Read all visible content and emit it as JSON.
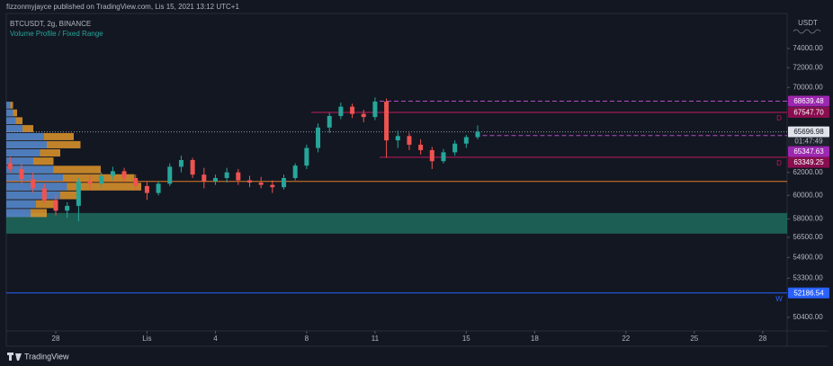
{
  "header": {
    "publisher": "fizzonmyjayce published on TradingView.com, Lis 15, 2021 13:12 UTC+1",
    "footer": "TradingView"
  },
  "chart_data": {
    "type": "candlestick",
    "title": "BTCUSDT, 2g, BINANCE",
    "indicator": "Volume Profile / Fixed Range",
    "currency": "USDT",
    "log_scale": true,
    "up_color": "#26a69a",
    "down_color": "#ef5350",
    "xlim": [
      -2.17,
      32.07
    ],
    "xticks": [
      {
        "value": 0,
        "label": "28"
      },
      {
        "value": 4,
        "label": "Lis"
      },
      {
        "value": 7,
        "label": "4"
      },
      {
        "value": 11,
        "label": "8"
      },
      {
        "value": 14,
        "label": "11"
      },
      {
        "value": 18,
        "label": "15"
      },
      {
        "value": 21,
        "label": "18"
      },
      {
        "value": 25,
        "label": "22"
      },
      {
        "value": 28,
        "label": "25"
      },
      {
        "value": 31,
        "label": "28"
      }
    ],
    "ylim": [
      49430,
      77800
    ],
    "yticks": [
      {
        "value": 74000,
        "label": "74000.00"
      },
      {
        "value": 72000,
        "label": "72000.00"
      },
      {
        "value": 70000,
        "label": "70000.00"
      },
      {
        "value": 62000,
        "label": "62000.00"
      },
      {
        "value": 60000,
        "label": "60000.00"
      },
      {
        "value": 58000,
        "label": "58000.00"
      },
      {
        "value": 56500,
        "label": "56500.00"
      },
      {
        "value": 54900,
        "label": "54900.00"
      },
      {
        "value": 53300,
        "label": "53300.00"
      },
      {
        "value": 50400,
        "label": "50400.00"
      }
    ],
    "x": [
      -2,
      -1.5,
      -1,
      -0.5,
      0,
      0.5,
      1,
      1.5,
      2,
      2.5,
      3,
      3.5,
      4,
      4.5,
      5,
      5.5,
      6,
      6.5,
      7,
      7.5,
      8,
      8.5,
      9,
      9.5,
      10,
      10.5,
      11,
      11.5,
      12,
      12.5,
      13,
      13.5,
      14,
      14.5,
      15,
      15.5,
      16,
      16.5,
      17,
      17.5,
      18,
      18.5
    ],
    "open": [
      62800,
      62300,
      61400,
      60600,
      59600,
      58700,
      59100,
      61200,
      61000,
      61700,
      62100,
      61500,
      60800,
      60200,
      61000,
      62500,
      63100,
      61800,
      61200,
      61500,
      62000,
      61300,
      61100,
      60900,
      60700,
      61500,
      62600,
      64200,
      66100,
      67200,
      68100,
      67400,
      67100,
      68600,
      64900,
      65300,
      64500,
      64000,
      63000,
      63800,
      64600,
      65200
    ],
    "high": [
      63400,
      62800,
      62000,
      61000,
      60000,
      59400,
      61500,
      61800,
      62000,
      62500,
      62400,
      61800,
      61200,
      61200,
      62800,
      63500,
      63300,
      62400,
      61800,
      62400,
      62300,
      61700,
      61600,
      61300,
      61800,
      62800,
      64500,
      66500,
      67500,
      68500,
      68400,
      67800,
      69000,
      68900,
      65800,
      65600,
      65000,
      64300,
      64100,
      64900,
      65400,
      66300
    ],
    "low": [
      62000,
      61000,
      60200,
      59300,
      58300,
      58100,
      57800,
      60500,
      60600,
      61300,
      61200,
      60400,
      59600,
      60000,
      60800,
      62000,
      61500,
      60600,
      60900,
      61100,
      60900,
      60700,
      60600,
      60200,
      60500,
      61300,
      62300,
      63800,
      65600,
      66900,
      67000,
      66600,
      66800,
      63300,
      64200,
      64000,
      63600,
      62300,
      62800,
      63500,
      64200,
      65000
    ],
    "close": [
      62300,
      61400,
      60600,
      59600,
      58700,
      59100,
      61200,
      61000,
      61700,
      62100,
      61500,
      60800,
      60200,
      61000,
      62500,
      63100,
      61800,
      61200,
      61500,
      62000,
      61300,
      61100,
      60900,
      60700,
      61500,
      62600,
      64200,
      66100,
      67200,
      68100,
      67400,
      67100,
      68600,
      64900,
      65300,
      64500,
      64000,
      63000,
      63800,
      64600,
      65200,
      65700
    ],
    "volume_profile": {
      "up_color": "#3a7bd5",
      "down_color": "#e0962c",
      "step": 750,
      "levels": [
        58500,
        59250,
        60000,
        60750,
        61500,
        62250,
        63000,
        63750,
        64500,
        65250,
        66000,
        66750,
        67500,
        68250
      ],
      "total": [
        30,
        38,
        55,
        100,
        95,
        70,
        35,
        40,
        55,
        50,
        20,
        12,
        8,
        5
      ],
      "up": [
        18,
        22,
        40,
        45,
        42,
        35,
        20,
        25,
        30,
        28,
        12,
        7,
        5,
        3
      ]
    },
    "zones": [
      {
        "from": 56800,
        "to": 58500,
        "color": "#1f6b5c"
      }
    ],
    "price_lines": [
      {
        "value": 65696.98,
        "label": "65696.98",
        "countdown": "01:47:49",
        "color": "#9598a1",
        "style": "dotted",
        "tag_color": "#e0e3eb",
        "tag_text": "#131722"
      },
      {
        "value": 68639.48,
        "label": "68639.48",
        "color": "#b44bc4",
        "style": "dashed",
        "from": 14.2,
        "tag_color": "#9c27b0",
        "tag_text": "#ffffff"
      },
      {
        "value": 67547.7,
        "label": "67547.70",
        "mark": "D",
        "color": "#c2185b",
        "style": "solid",
        "from": 11.2,
        "tag_color": "#880e4f",
        "tag_text": "#ffffff"
      },
      {
        "value": 65347.63,
        "label": "65347.63",
        "color": "#b44bc4",
        "style": "dashed",
        "from": 18.4,
        "tag_color": "#9c27b0",
        "tag_text": "#ffffff"
      },
      {
        "value": 63349.25,
        "label": "63349.25",
        "mark": "D",
        "color": "#c2185b",
        "style": "solid",
        "from": 14.2,
        "tag_color": "#880e4f",
        "tag_text": "#ffffff"
      },
      {
        "value": 61200,
        "color": "#e07b24",
        "style": "solid"
      },
      {
        "value": 52186.54,
        "label": "52186.54",
        "mark": "W",
        "color": "#2962ff",
        "style": "solid",
        "tag_color": "#2962ff",
        "tag_text": "#ffffff"
      }
    ]
  }
}
